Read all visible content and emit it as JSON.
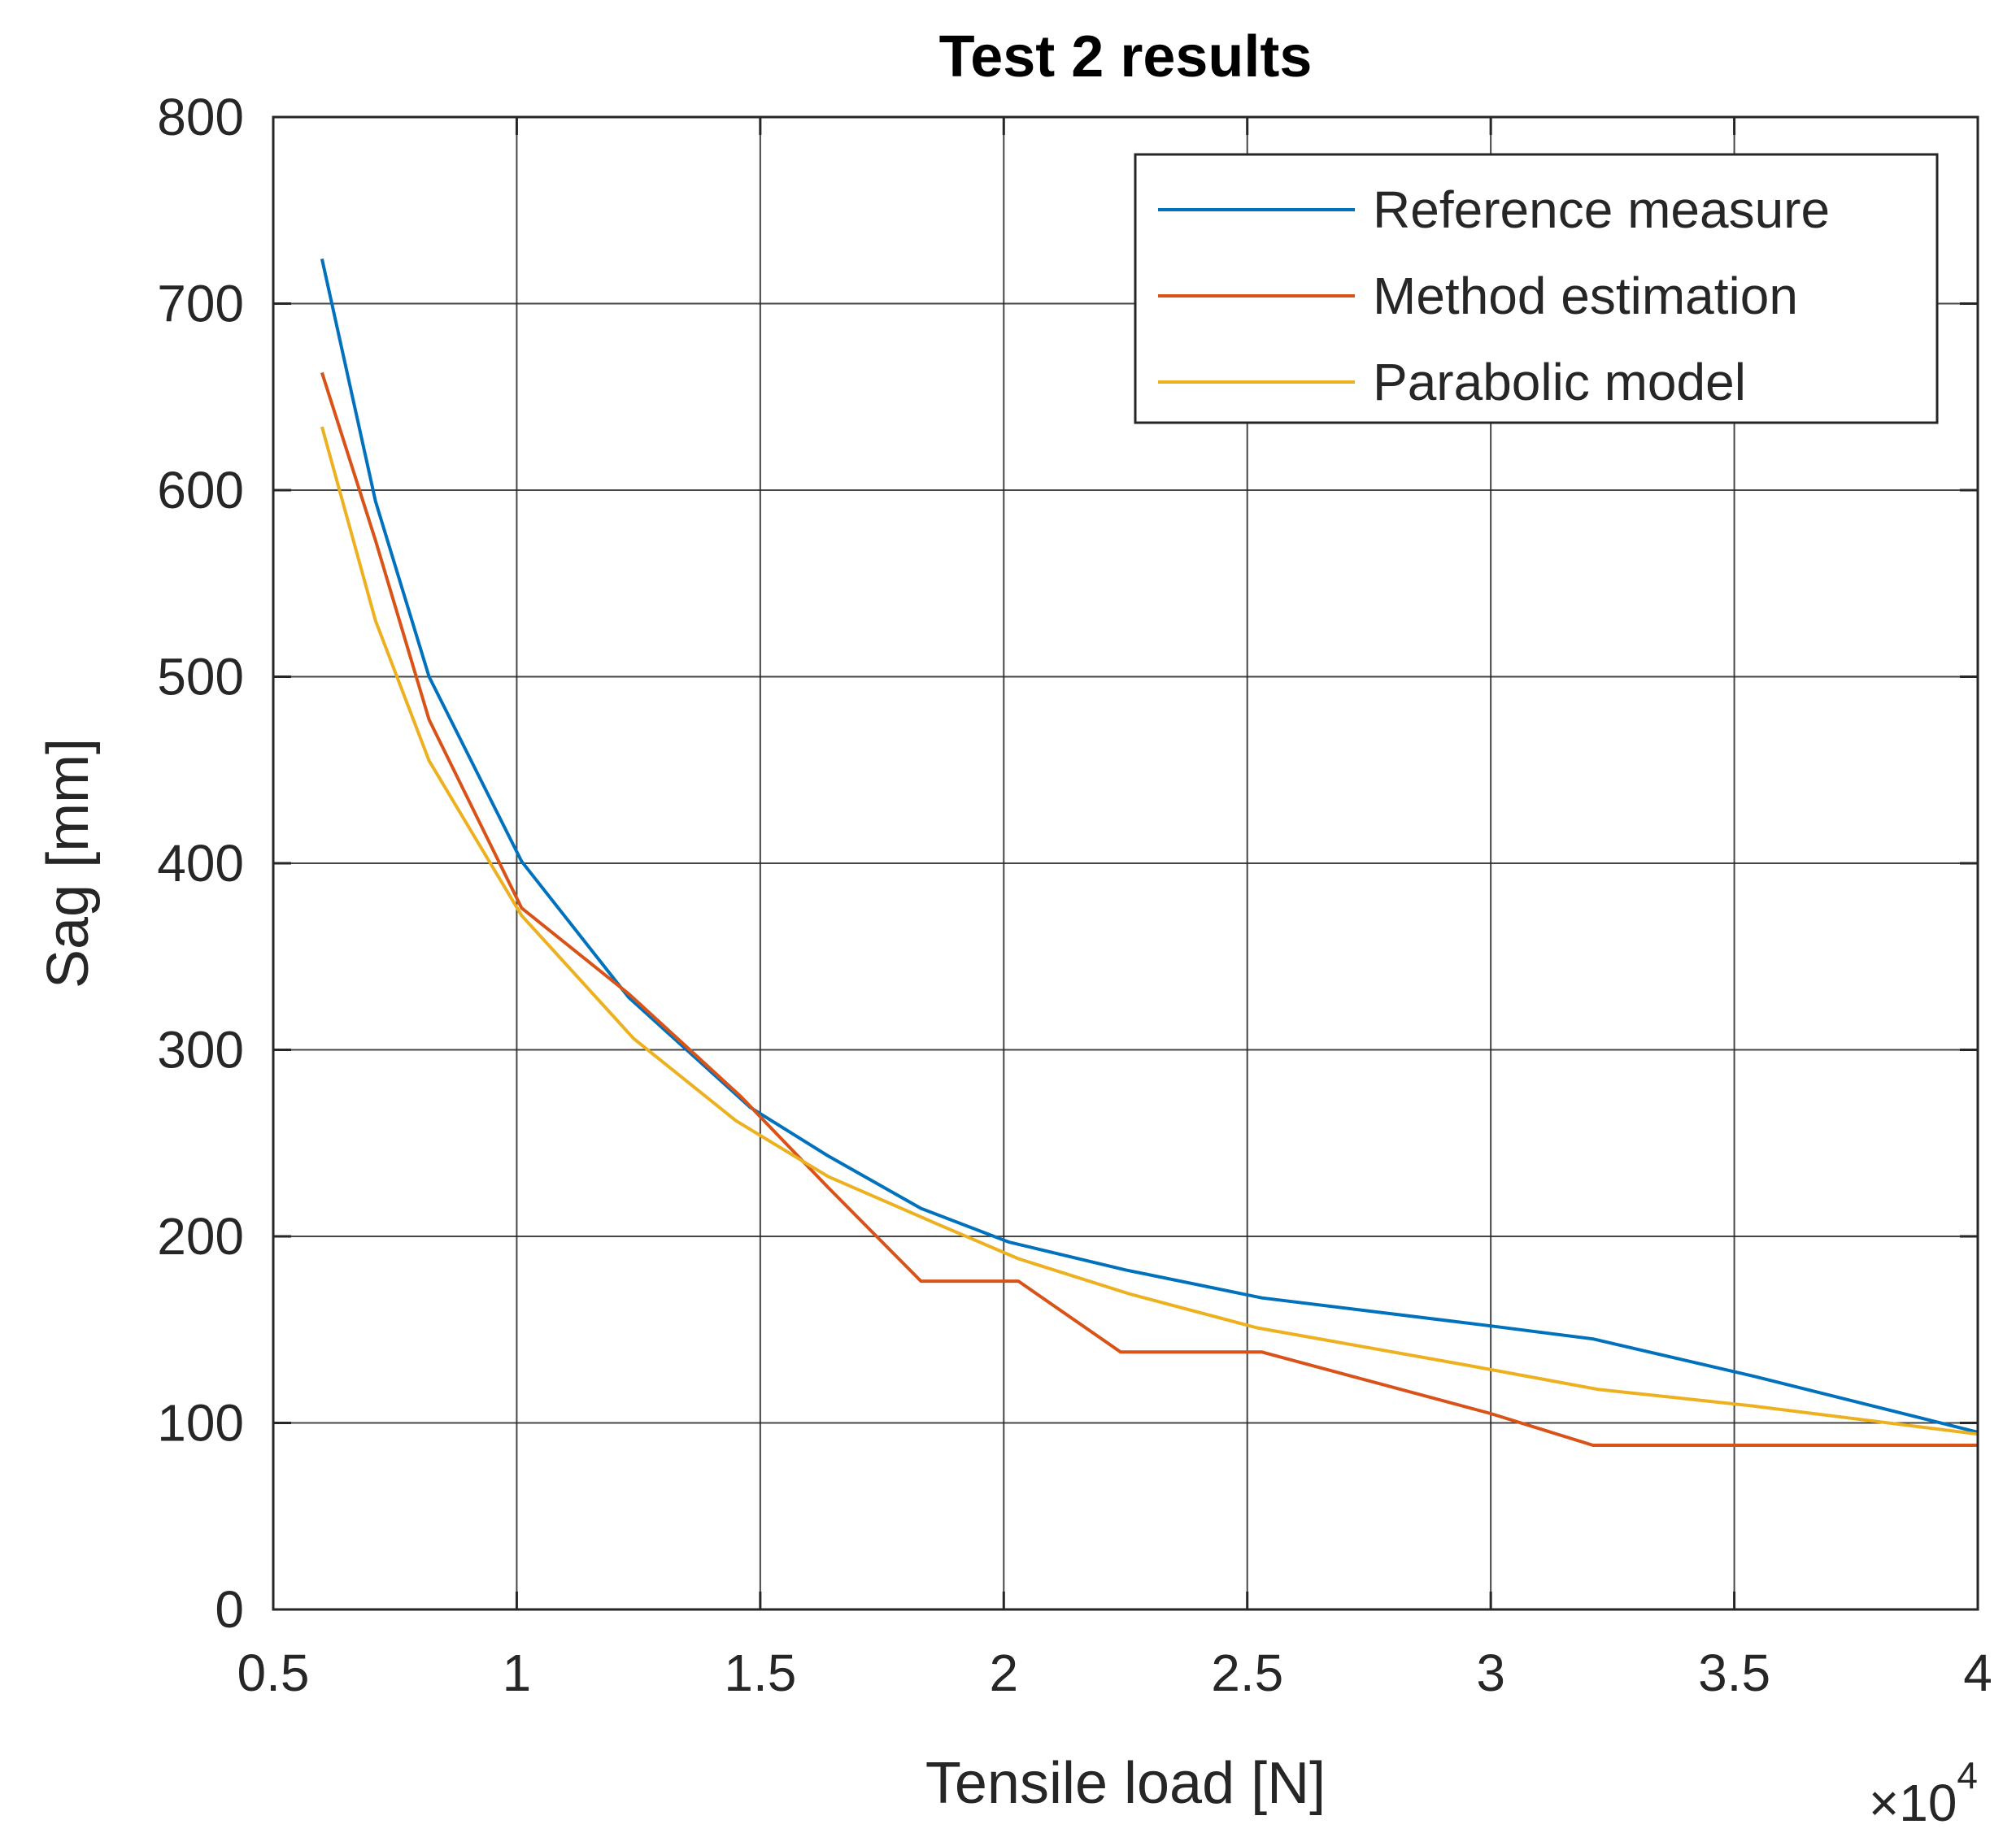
{
  "chart_data": {
    "type": "line",
    "title": "Test 2 results",
    "xlabel": "Tensile load [N]",
    "ylabel": "Sag [mm]",
    "x_exponent_label": "×10",
    "x_exponent_power": "4",
    "x_scale": 10000,
    "xlim": [
      0.5,
      4
    ],
    "ylim": [
      0,
      800
    ],
    "xticks": [
      0.5,
      1,
      1.5,
      2,
      2.5,
      3,
      3.5,
      4
    ],
    "xtick_labels": [
      "0.5",
      "1",
      "1.5",
      "2",
      "2.5",
      "3",
      "3.5",
      "4"
    ],
    "yticks": [
      0,
      100,
      200,
      300,
      400,
      500,
      600,
      700,
      800
    ],
    "ytick_labels": [
      "0",
      "100",
      "200",
      "300",
      "400",
      "500",
      "600",
      "700",
      "800"
    ],
    "grid": true,
    "legend_position": "top-right",
    "series": [
      {
        "name": "Reference measure",
        "color": "#0072BD",
        "points": [
          [
            0.6,
            724
          ],
          [
            0.71,
            594
          ],
          [
            0.82,
            500
          ],
          [
            1.01,
            401
          ],
          [
            1.23,
            328
          ],
          [
            1.48,
            269
          ],
          [
            1.64,
            243
          ],
          [
            1.83,
            215
          ],
          [
            2.01,
            197
          ],
          [
            2.25,
            182
          ],
          [
            2.53,
            167
          ],
          [
            3.0,
            152
          ],
          [
            3.21,
            145
          ],
          [
            3.54,
            125
          ],
          [
            4.0,
            95
          ]
        ]
      },
      {
        "name": "Method estimation",
        "color": "#D95319",
        "points": [
          [
            0.6,
            663
          ],
          [
            0.71,
            573
          ],
          [
            0.82,
            477
          ],
          [
            1.01,
            376
          ],
          [
            1.23,
            330
          ],
          [
            1.46,
            275
          ],
          [
            1.64,
            226
          ],
          [
            1.83,
            176
          ],
          [
            1.95,
            176
          ],
          [
            2.03,
            176
          ],
          [
            2.24,
            138
          ],
          [
            2.53,
            138
          ],
          [
            3.0,
            105
          ],
          [
            3.21,
            88
          ],
          [
            4.0,
            88
          ]
        ]
      },
      {
        "name": "Parabolic model",
        "color": "#EDB120",
        "points": [
          [
            0.6,
            634
          ],
          [
            0.71,
            530
          ],
          [
            0.82,
            455
          ],
          [
            1.01,
            372
          ],
          [
            1.24,
            306
          ],
          [
            1.45,
            262
          ],
          [
            1.64,
            232
          ],
          [
            1.86,
            207
          ],
          [
            2.03,
            188
          ],
          [
            2.26,
            169
          ],
          [
            2.52,
            151
          ],
          [
            2.95,
            131
          ],
          [
            3.22,
            118
          ],
          [
            3.54,
            109
          ],
          [
            4.0,
            94
          ]
        ]
      }
    ]
  }
}
